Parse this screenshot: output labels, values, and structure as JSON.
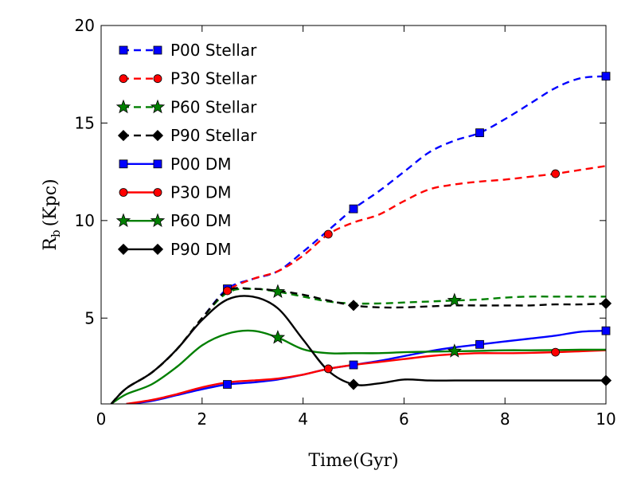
{
  "chart_data": {
    "type": "line",
    "xlabel": "Time(Gyr)",
    "ylabel_main": "R",
    "ylabel_sub": "b",
    "ylabel_unit": "(Kpc)",
    "xlim": [
      0,
      10
    ],
    "ylim": [
      0.6,
      20
    ],
    "xticks": [
      0,
      2,
      4,
      6,
      8,
      10
    ],
    "yticks": [
      5,
      10,
      15,
      20
    ],
    "grid": false,
    "legend_position": "top-left",
    "series": [
      {
        "name": "P00 Stellar",
        "color": "#0000ff",
        "dash": true,
        "marker": "square",
        "x": [
          0.2,
          0.5,
          1.0,
          1.5,
          2.0,
          2.5,
          3.0,
          3.5,
          4.0,
          4.5,
          5.0,
          5.5,
          6.0,
          6.5,
          7.0,
          7.5,
          8.0,
          8.5,
          9.0,
          9.5,
          10.0
        ],
        "y": [
          0.6,
          1.4,
          2.2,
          3.4,
          5.0,
          6.5,
          7.0,
          7.4,
          8.4,
          9.5,
          10.6,
          11.5,
          12.5,
          13.5,
          14.1,
          14.5,
          15.2,
          16.0,
          16.8,
          17.3,
          17.4
        ],
        "marker_x": [
          2.5,
          5.0,
          7.5,
          10.0
        ]
      },
      {
        "name": "P30 Stellar",
        "color": "#ff0000",
        "dash": true,
        "marker": "circle",
        "x": [
          0.2,
          0.5,
          1.0,
          1.5,
          2.0,
          2.5,
          3.0,
          3.5,
          4.0,
          4.5,
          5.0,
          5.5,
          6.0,
          6.5,
          7.0,
          7.5,
          8.0,
          8.5,
          9.0,
          9.5,
          10.0
        ],
        "y": [
          0.6,
          1.4,
          2.2,
          3.4,
          5.0,
          6.4,
          7.0,
          7.4,
          8.2,
          9.3,
          9.9,
          10.3,
          11.0,
          11.6,
          11.85,
          12.0,
          12.1,
          12.25,
          12.4,
          12.6,
          12.8
        ],
        "marker_x": [
          2.5,
          4.5,
          9.0
        ]
      },
      {
        "name": "P60 Stellar",
        "color": "#007f00",
        "dash": true,
        "marker": "star",
        "x": [
          0.2,
          0.5,
          1.0,
          1.5,
          2.0,
          2.5,
          3.0,
          3.5,
          4.0,
          4.5,
          5.0,
          5.5,
          6.0,
          6.5,
          7.0,
          7.5,
          8.0,
          8.5,
          9.0,
          9.5,
          10.0
        ],
        "y": [
          0.6,
          1.4,
          2.2,
          3.4,
          5.0,
          6.3,
          6.5,
          6.35,
          6.1,
          5.85,
          5.75,
          5.75,
          5.8,
          5.85,
          5.9,
          5.95,
          6.05,
          6.1,
          6.1,
          6.1,
          6.1
        ],
        "marker_x": [
          3.5,
          7.0
        ]
      },
      {
        "name": "P90 Stellar",
        "color": "#000000",
        "dash": true,
        "marker": "diamond",
        "x": [
          0.2,
          0.5,
          1.0,
          1.5,
          2.0,
          2.5,
          3.0,
          3.5,
          4.0,
          4.5,
          5.0,
          5.5,
          6.0,
          6.5,
          7.0,
          7.5,
          8.0,
          8.5,
          9.0,
          9.5,
          10.0
        ],
        "y": [
          0.6,
          1.4,
          2.2,
          3.4,
          5.0,
          6.4,
          6.5,
          6.4,
          6.2,
          5.9,
          5.65,
          5.55,
          5.55,
          5.6,
          5.65,
          5.65,
          5.65,
          5.65,
          5.7,
          5.7,
          5.75
        ],
        "marker_x": [
          5.0,
          10.0
        ]
      },
      {
        "name": "P00 DM",
        "color": "#0000ff",
        "dash": false,
        "marker": "square",
        "x": [
          0.5,
          1.0,
          1.5,
          2.0,
          2.5,
          3.0,
          3.5,
          4.0,
          4.5,
          5.0,
          5.5,
          6.0,
          6.5,
          7.0,
          7.5,
          8.0,
          8.5,
          9.0,
          9.5,
          10.0
        ],
        "y": [
          0.6,
          0.75,
          1.05,
          1.35,
          1.6,
          1.7,
          1.85,
          2.1,
          2.4,
          2.6,
          2.8,
          3.05,
          3.3,
          3.5,
          3.65,
          3.8,
          3.95,
          4.1,
          4.3,
          4.35
        ],
        "marker_x": [
          2.5,
          5.0,
          7.5,
          10.0
        ]
      },
      {
        "name": "P30 DM",
        "color": "#ff0000",
        "dash": false,
        "marker": "circle",
        "x": [
          0.5,
          1.0,
          1.5,
          2.0,
          2.5,
          3.0,
          3.5,
          4.0,
          4.5,
          5.0,
          5.5,
          6.0,
          6.5,
          7.0,
          7.5,
          8.0,
          8.5,
          9.0,
          9.5,
          10.0
        ],
        "y": [
          0.6,
          0.8,
          1.1,
          1.45,
          1.7,
          1.8,
          1.9,
          2.1,
          2.4,
          2.6,
          2.75,
          2.9,
          3.05,
          3.15,
          3.2,
          3.2,
          3.22,
          3.25,
          3.3,
          3.35
        ],
        "marker_x": [
          4.5,
          9.0
        ]
      },
      {
        "name": "P60 DM",
        "color": "#007f00",
        "dash": false,
        "marker": "star",
        "x": [
          0.2,
          0.5,
          1.0,
          1.5,
          2.0,
          2.5,
          3.0,
          3.5,
          4.0,
          4.5,
          5.0,
          5.5,
          6.0,
          6.5,
          7.0,
          7.5,
          8.0,
          8.5,
          9.0,
          9.5,
          10.0
        ],
        "y": [
          0.6,
          1.1,
          1.6,
          2.5,
          3.6,
          4.2,
          4.35,
          4.0,
          3.4,
          3.2,
          3.2,
          3.2,
          3.25,
          3.28,
          3.3,
          3.32,
          3.35,
          3.35,
          3.36,
          3.38,
          3.38
        ],
        "marker_x": [
          3.5,
          7.0
        ]
      },
      {
        "name": "P90 DM",
        "color": "#000000",
        "dash": false,
        "marker": "diamond",
        "x": [
          0.2,
          0.5,
          1.0,
          1.5,
          2.0,
          2.5,
          3.0,
          3.5,
          4.0,
          4.5,
          5.0,
          5.5,
          6.0,
          6.5,
          7.0,
          7.5,
          8.0,
          8.5,
          9.0,
          9.5,
          10.0
        ],
        "y": [
          0.6,
          1.4,
          2.2,
          3.4,
          4.9,
          5.95,
          6.1,
          5.5,
          3.9,
          2.3,
          1.6,
          1.65,
          1.85,
          1.8,
          1.8,
          1.8,
          1.8,
          1.8,
          1.8,
          1.8,
          1.8
        ],
        "marker_x": [
          5.0,
          10.0
        ]
      }
    ]
  }
}
